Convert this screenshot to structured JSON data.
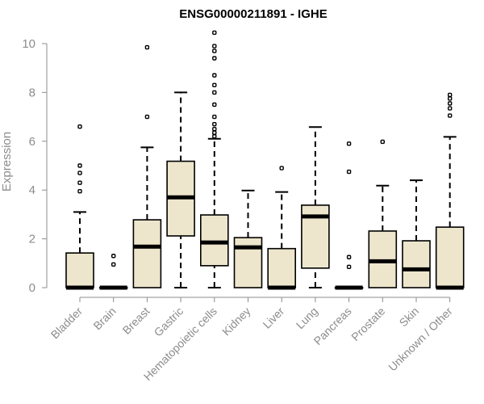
{
  "chart_data": {
    "type": "boxplot",
    "title": "ENSG00000211891 - IGHE",
    "ylabel": "Expression",
    "xlabel": "",
    "ylim": [
      0,
      10.5
    ],
    "yticks": [
      0,
      2,
      4,
      6,
      8,
      10
    ],
    "box_fill": "#ede6cc",
    "categories": [
      "Bladder",
      "Brain",
      "Breast",
      "Gastric",
      "Hematopoietic cells",
      "Kidney",
      "Liver",
      "Lung",
      "Pancreas",
      "Prostate",
      "Skin",
      "Unknown / Other"
    ],
    "boxes": [
      {
        "min": 0,
        "q1": 0,
        "median": 0,
        "q3": 1.42,
        "max": 3.1,
        "outliers": [
          3.95,
          4.3,
          4.7,
          5.0,
          6.6
        ]
      },
      {
        "min": 0,
        "q1": 0,
        "median": 0,
        "q3": 0,
        "max": 0,
        "outliers": [
          0.95,
          1.3
        ]
      },
      {
        "min": 0,
        "q1": 0,
        "median": 1.68,
        "q3": 2.78,
        "max": 5.75,
        "outliers": [
          7.0,
          9.85
        ]
      },
      {
        "min": 0,
        "q1": 2.12,
        "median": 3.7,
        "q3": 5.18,
        "max": 8.0,
        "outliers": []
      },
      {
        "min": 0,
        "q1": 0.9,
        "median": 1.85,
        "q3": 2.98,
        "max": 6.1,
        "outliers": [
          6.2,
          6.35,
          6.5,
          6.7,
          7.0,
          7.5,
          8.0,
          8.3,
          8.7,
          9.4,
          9.7,
          9.9,
          10.45
        ]
      },
      {
        "min": 0,
        "q1": 0,
        "median": 1.65,
        "q3": 2.05,
        "max": 3.98,
        "outliers": []
      },
      {
        "min": 0,
        "q1": 0,
        "median": 0,
        "q3": 1.6,
        "max": 3.92,
        "outliers": [
          4.9
        ]
      },
      {
        "min": 0,
        "q1": 0.8,
        "median": 2.92,
        "q3": 3.38,
        "max": 6.58,
        "outliers": []
      },
      {
        "min": 0,
        "q1": 0,
        "median": 0,
        "q3": 0,
        "max": 0,
        "outliers": [
          0.85,
          1.25,
          4.75,
          5.9
        ]
      },
      {
        "min": 0,
        "q1": 0,
        "median": 1.08,
        "q3": 2.32,
        "max": 4.18,
        "outliers": [
          5.98
        ]
      },
      {
        "min": 0,
        "q1": 0,
        "median": 0.75,
        "q3": 1.92,
        "max": 4.4,
        "outliers": []
      },
      {
        "min": 0,
        "q1": 0,
        "median": 0,
        "q3": 2.48,
        "max": 6.18,
        "outliers": [
          7.05,
          7.35,
          7.55,
          7.75,
          7.9
        ]
      }
    ]
  }
}
